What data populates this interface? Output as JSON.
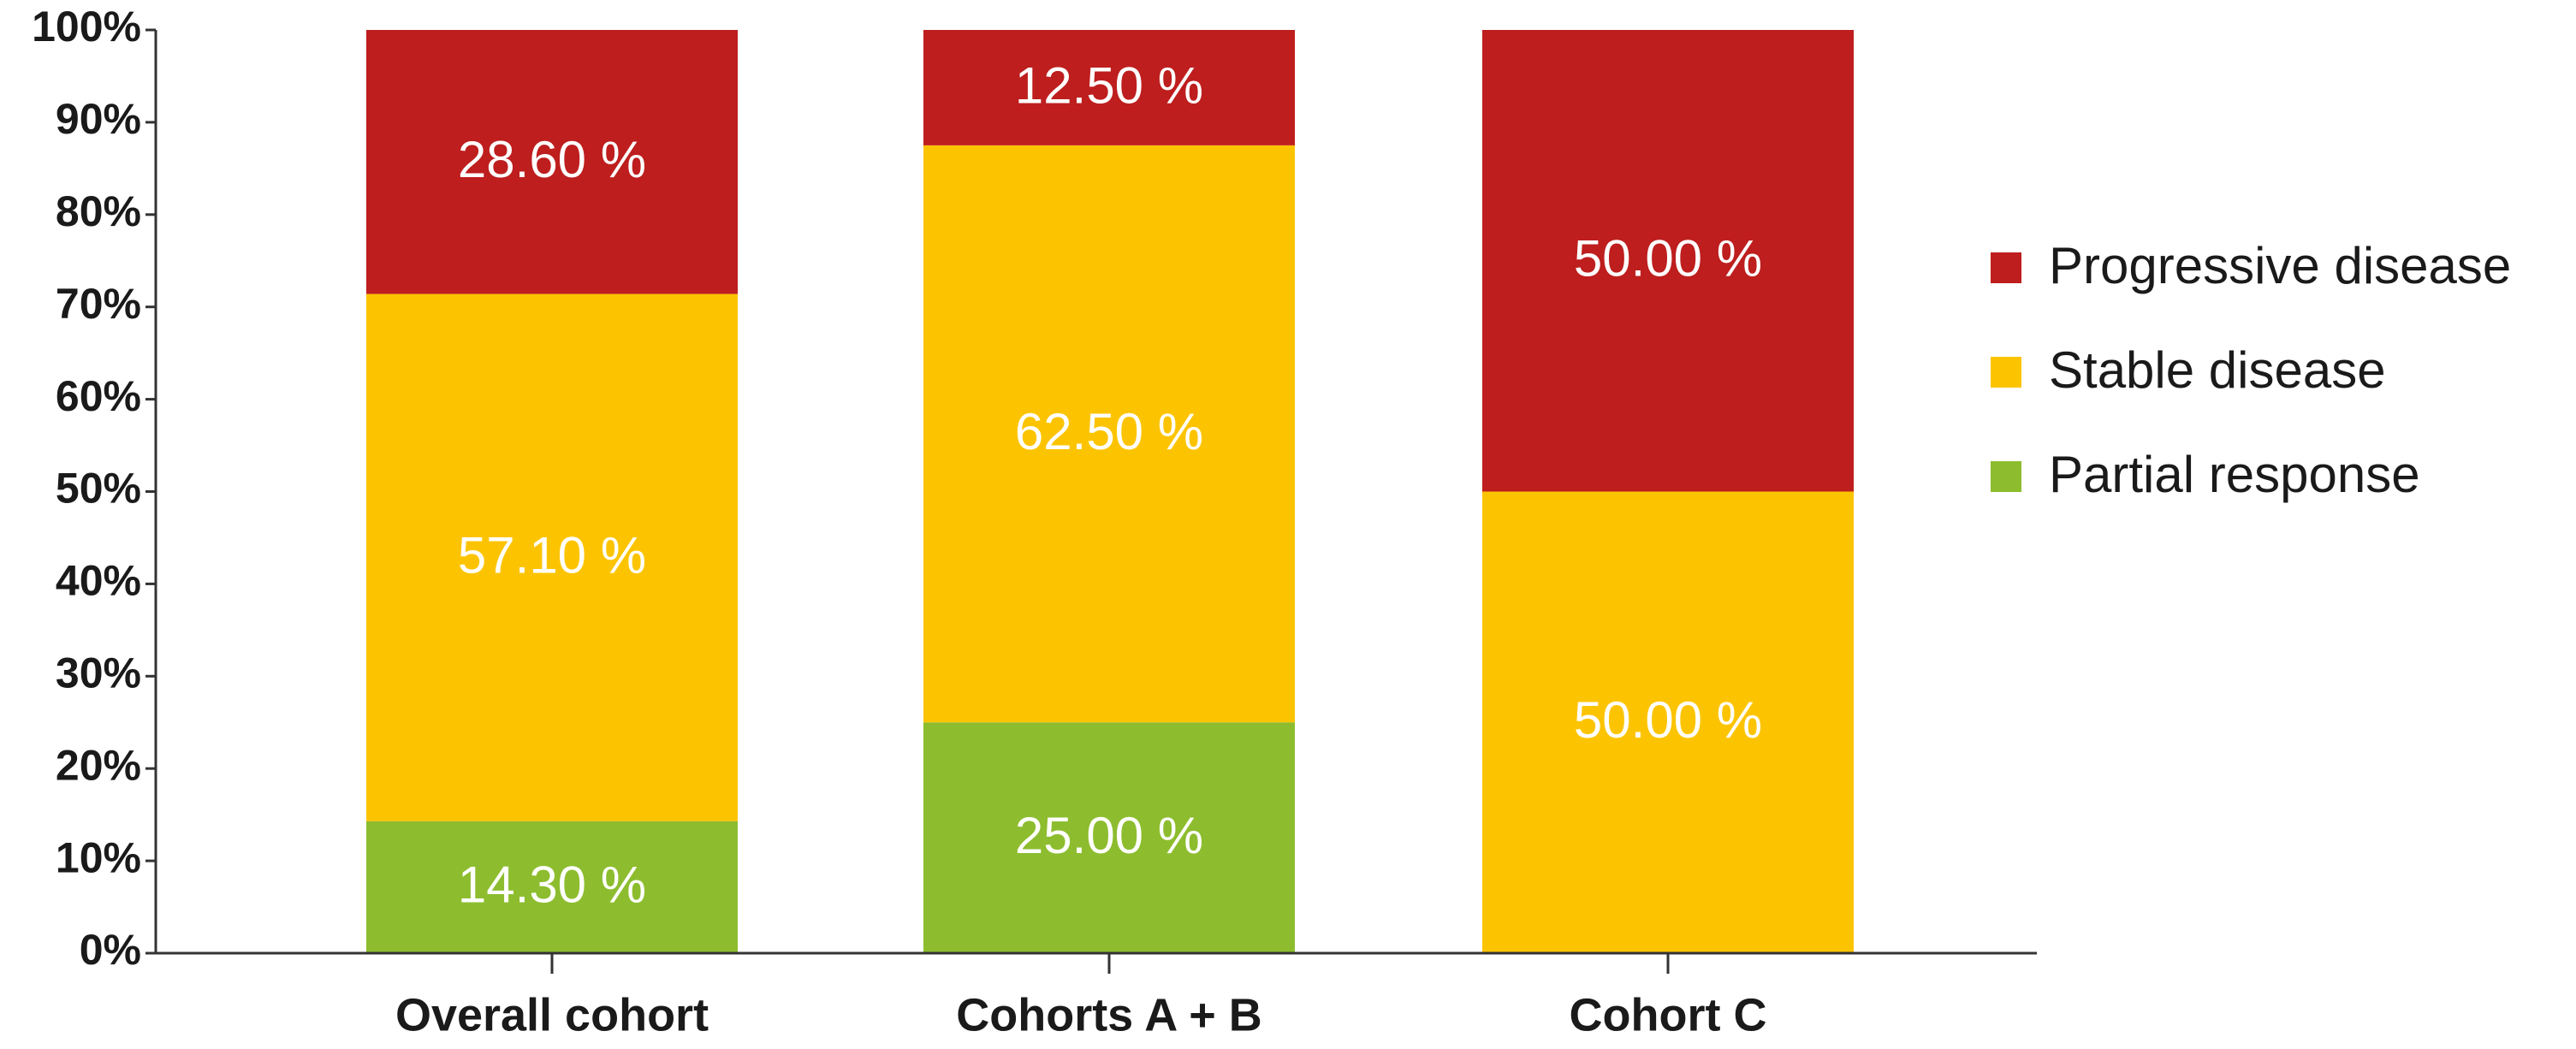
{
  "chart_data": {
    "type": "stacked_bar",
    "categories": [
      "Overall cohort",
      "Cohorts A + B",
      "Cohort C"
    ],
    "series": [
      {
        "name": "Partial response",
        "color": "#8dbd2e",
        "values": [
          14.3,
          25,
          null
        ],
        "value_labels": [
          "14.30 %",
          "25.00 %",
          null
        ]
      },
      {
        "name": "Stable disease",
        "color": "#fcc400",
        "values": [
          57.1,
          62.5,
          50
        ],
        "value_labels": [
          "57.10 %",
          "62.50 %",
          "50.00 %"
        ]
      },
      {
        "name": "Progressive disease",
        "color": "#be1e1e",
        "values": [
          28.6,
          12.5,
          50
        ],
        "value_labels": [
          "28.60 %",
          "12.50 %",
          "50.00 %"
        ]
      }
    ],
    "ylim": [
      0,
      100
    ],
    "yticks": [
      {
        "value": 0,
        "label": "0%"
      },
      {
        "value": 10,
        "label": "10%"
      },
      {
        "value": 20,
        "label": "20%"
      },
      {
        "value": 30,
        "label": "30%"
      },
      {
        "value": 40,
        "label": "40%"
      },
      {
        "value": 50,
        "label": "50%"
      },
      {
        "value": 60,
        "label": "60%"
      },
      {
        "value": 70,
        "label": "70%"
      },
      {
        "value": 80,
        "label": "80%"
      },
      {
        "value": 90,
        "label": "90%"
      },
      {
        "value": 100,
        "label": "100%"
      }
    ],
    "legend": "right"
  }
}
